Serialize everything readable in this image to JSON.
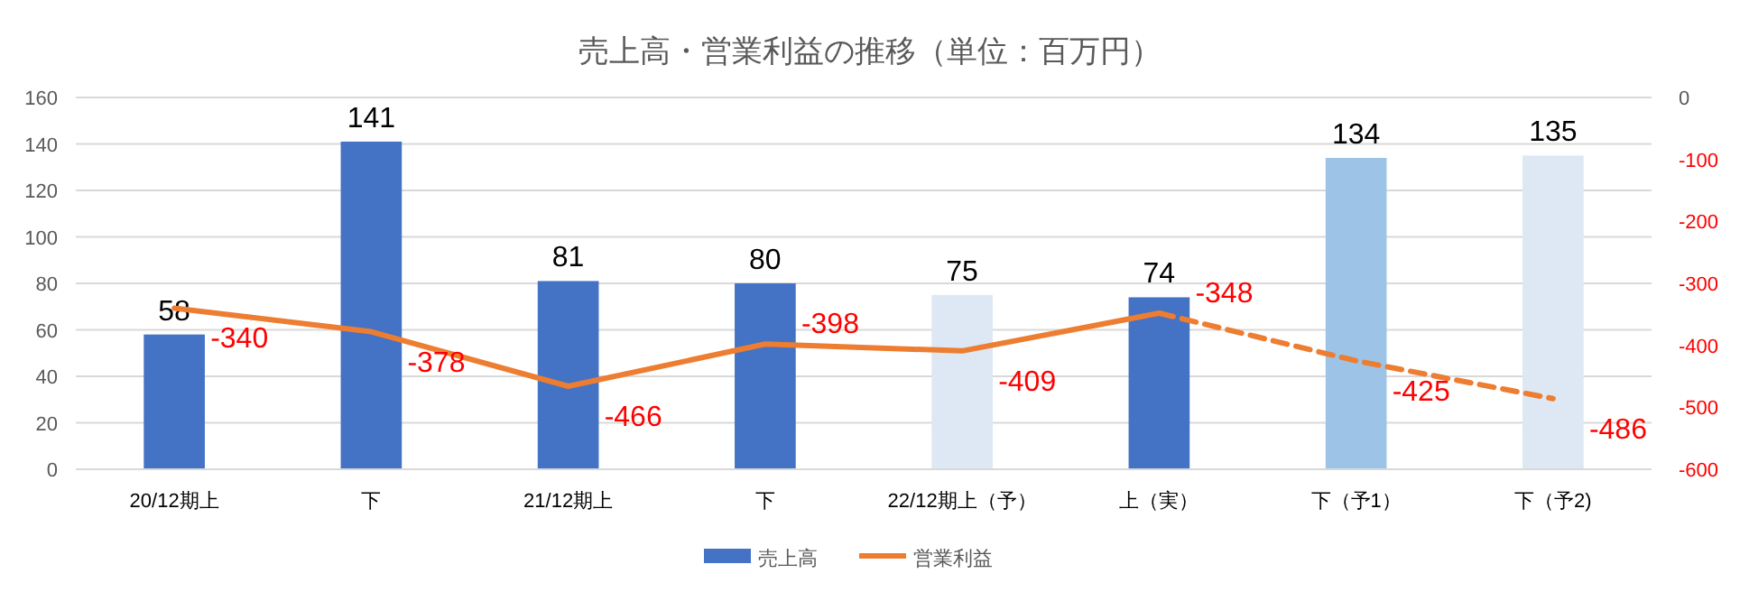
{
  "chart_data": {
    "type": "bar",
    "title": "売上高・営業利益の推移（単位：百万円）",
    "categories": [
      "20/12期上",
      "下",
      "21/12期上",
      "下",
      "22/12期上（予）",
      "上（実）",
      "下（予1）",
      "下（予2)"
    ],
    "series": [
      {
        "name": "売上高",
        "color": "#4472c4",
        "colors": [
          "#4472c4",
          "#4472c4",
          "#4472c4",
          "#4472c4",
          "#dde8f4",
          "#4472c4",
          "#9dc3e6",
          "#dde8f4"
        ],
        "values": [
          58,
          141,
          81,
          80,
          75,
          74,
          134,
          135
        ],
        "value_labels": [
          "58",
          "141",
          "81",
          "80",
          "75",
          "74",
          "134",
          "135"
        ]
      },
      {
        "name": "営業利益",
        "type": "line",
        "axis": "y2",
        "color": "#ed7d31",
        "line_style": "solid",
        "values": [
          -340,
          -378,
          -466,
          -398,
          -409,
          -348,
          null,
          null
        ],
        "value_labels": [
          "-340",
          "-378",
          "-466",
          "-398",
          "-409",
          "-348",
          null,
          null
        ]
      },
      {
        "type": "line",
        "axis": "y2",
        "color": "#ed7d31",
        "line_style": "dashed",
        "values": [
          null,
          null,
          null,
          null,
          null,
          -348,
          -425,
          -486
        ],
        "value_labels": [
          null,
          null,
          null,
          null,
          null,
          null,
          "-425",
          "-486"
        ]
      }
    ],
    "ylim": [
      0,
      160
    ],
    "yticks": [
      0,
      20,
      40,
      60,
      80,
      100,
      120,
      140,
      160
    ],
    "y2lim": [
      -600,
      0
    ],
    "y2ticks": [
      -600,
      -500,
      -400,
      -300,
      -200,
      -100,
      0
    ],
    "grid": "y",
    "legend": "bottom",
    "marker": "none"
  }
}
